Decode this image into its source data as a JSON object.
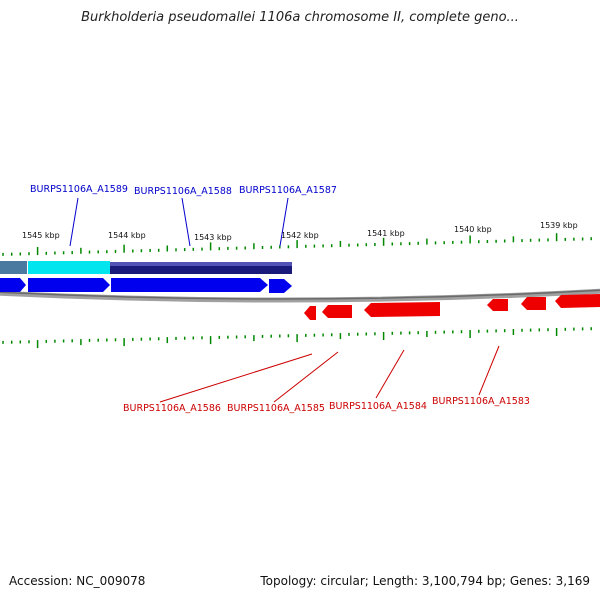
{
  "title": "Burkholderia pseudomallei 1106a chromosome II, complete geno...",
  "footer": {
    "accession": "Accession: NC_009078",
    "summary": "Topology: circular; Length: 3,100,794 bp; Genes: 3,169"
  },
  "colors": {
    "forward_label": "#0000cc",
    "reverse_label": "#cc0000",
    "forward_gene": "#0000ee",
    "reverse_gene": "#ee0000",
    "tick": "#008800",
    "backbone": "#808080",
    "track_navy": "#1a1a7a",
    "track_cyan": "#00e5ee",
    "track_steel": "#4a7aa0"
  },
  "ticks": {
    "labels": [
      {
        "text": "1545 kbp",
        "x": 1545
      },
      {
        "text": "1544 kbp",
        "x": 1544
      },
      {
        "text": "1543 kbp",
        "x": 1543
      },
      {
        "text": "1542 kbp",
        "x": 1542
      },
      {
        "text": "1541 kbp",
        "x": 1541
      },
      {
        "text": "1540 kbp",
        "x": 1540
      },
      {
        "text": "1539 kbp",
        "x": 1539
      }
    ]
  },
  "forward_labels": [
    {
      "text": "BURPS1106A_A1589"
    },
    {
      "text": "BURPS1106A_A1588"
    },
    {
      "text": "BURPS1106A_A1587"
    }
  ],
  "reverse_labels": [
    {
      "text": "BURPS1106A_A1586"
    },
    {
      "text": "BURPS1106A_A1585"
    },
    {
      "text": "BURPS1106A_A1584"
    },
    {
      "text": "BURPS1106A_A1583"
    }
  ]
}
